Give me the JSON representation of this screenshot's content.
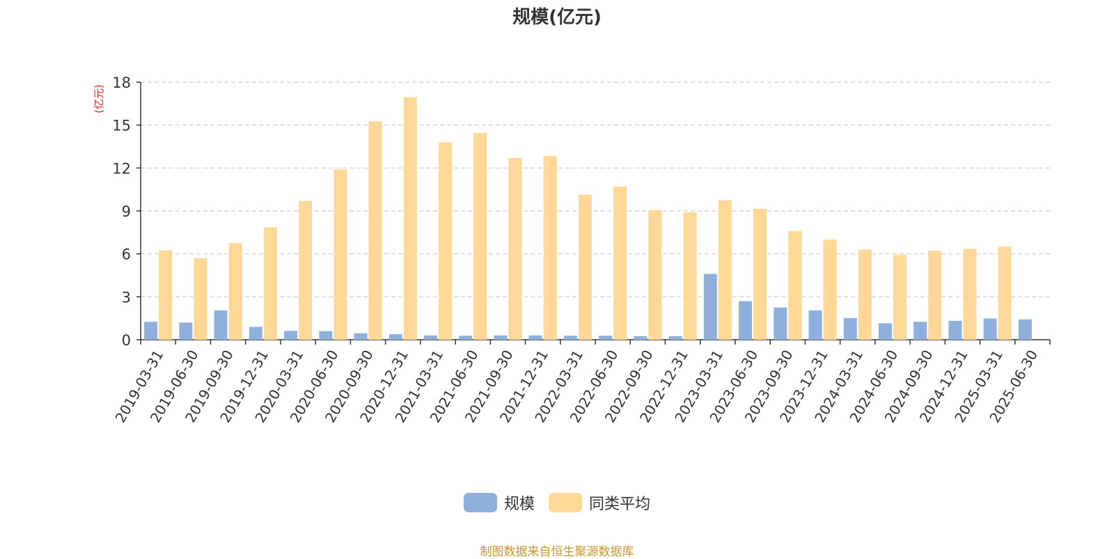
{
  "title": "规模(亿元)",
  "colors": {
    "series_1": "#8fb0dd",
    "series_2": "#ffd898",
    "unit_label": "#e8231e",
    "footer": "#c8962c",
    "axis": "#333333",
    "grid": "#cccccc"
  },
  "legend": {
    "items": [
      "规模",
      "同类平均"
    ]
  },
  "footer": "制图数据来自恒生聚源数据库",
  "chart_data": {
    "type": "bar",
    "title": "规模(亿元)",
    "ylabel": "(亿元)",
    "xlabel": "",
    "ylim": [
      0,
      18
    ],
    "yticks": [
      0,
      3,
      6,
      9,
      12,
      15,
      18
    ],
    "grid": true,
    "legend_position": "bottom",
    "categories": [
      "2019-03-31",
      "2019-06-30",
      "2019-09-30",
      "2019-12-31",
      "2020-03-31",
      "2020-06-30",
      "2020-09-30",
      "2020-12-31",
      "2021-03-31",
      "2021-06-30",
      "2021-09-30",
      "2021-12-31",
      "2022-03-31",
      "2022-06-30",
      "2022-09-30",
      "2022-12-31",
      "2023-03-31",
      "2023-06-30",
      "2023-09-30",
      "2023-12-31",
      "2024-03-31",
      "2024-06-30",
      "2024-09-30",
      "2024-12-31",
      "2025-03-31",
      "2025-06-30"
    ],
    "series": [
      {
        "name": "规模",
        "values": [
          1.25,
          1.2,
          2.05,
          0.9,
          0.62,
          0.6,
          0.45,
          0.38,
          0.3,
          0.28,
          0.3,
          0.3,
          0.28,
          0.28,
          0.25,
          0.25,
          4.6,
          2.7,
          2.25,
          2.05,
          1.52,
          1.15,
          1.25,
          1.32,
          1.48,
          1.42
        ]
      },
      {
        "name": "同类平均",
        "values": [
          6.25,
          5.7,
          6.75,
          7.85,
          9.7,
          11.9,
          15.25,
          16.95,
          13.8,
          14.45,
          12.7,
          12.85,
          10.15,
          10.7,
          9.05,
          8.9,
          9.75,
          9.15,
          7.6,
          7.0,
          6.3,
          5.92,
          6.22,
          6.35,
          6.5,
          null
        ]
      }
    ]
  }
}
